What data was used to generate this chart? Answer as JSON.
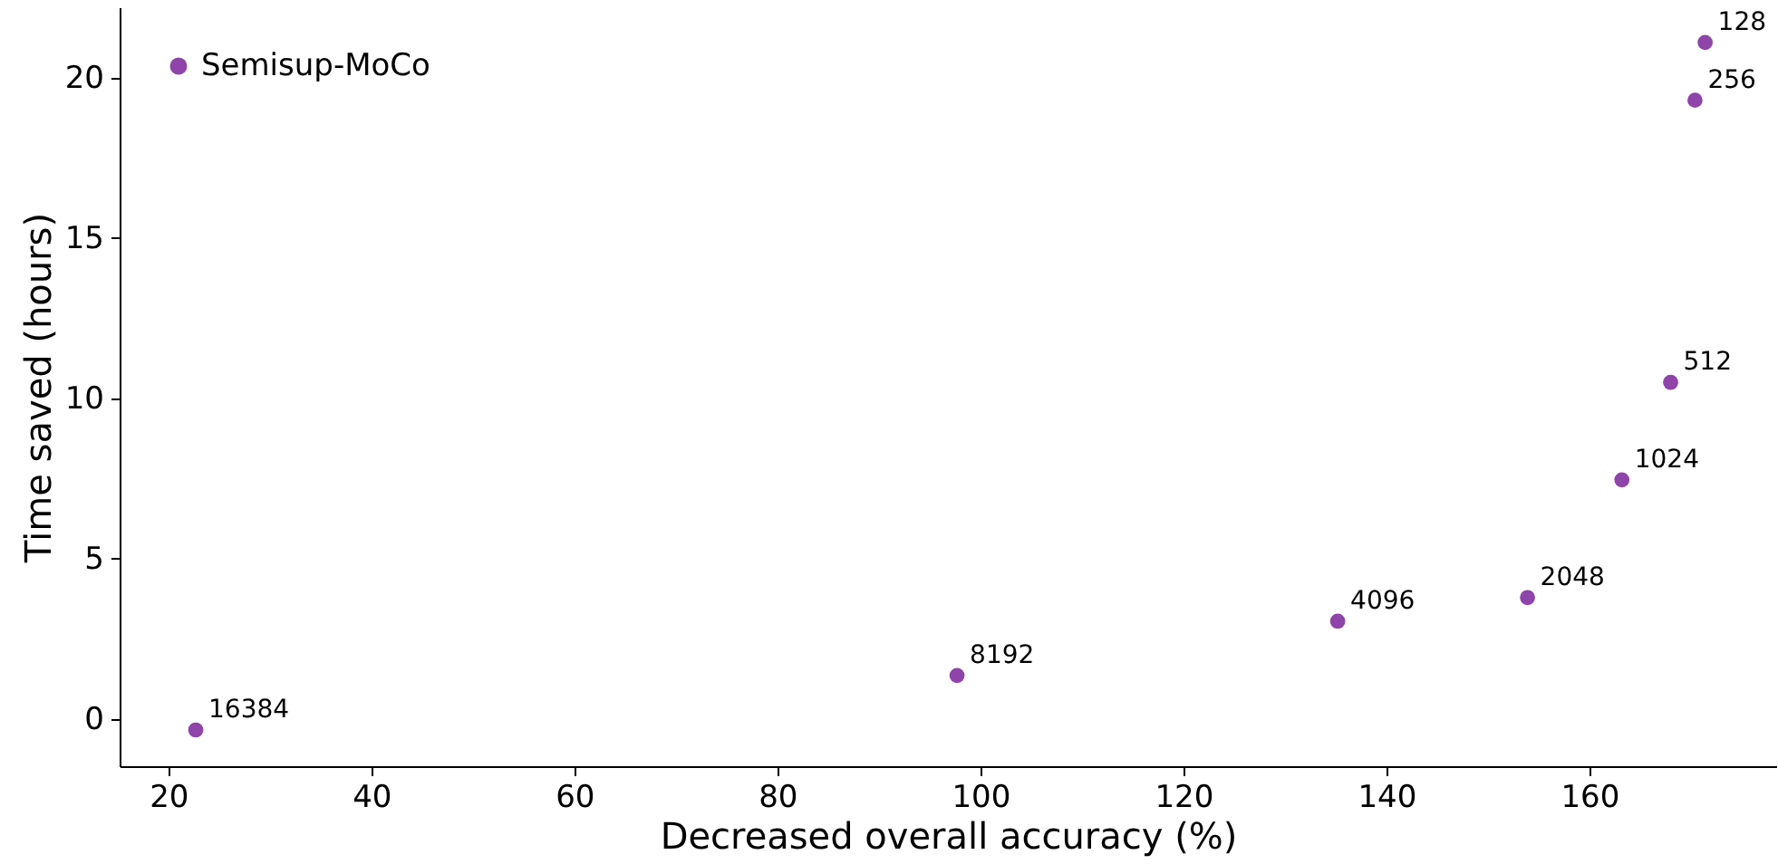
{
  "chart_data": {
    "type": "scatter",
    "xlabel": "Decreased overall accuracy (%)",
    "ylabel": "Time saved (hours)",
    "x": [
      22.7,
      97.7,
      135.2,
      153.9,
      163.2,
      168,
      170.4,
      171.4
    ],
    "series": [
      {
        "name": "Semisup-MoCo",
        "color": "#8e44a8",
        "values": [
          -0.34,
          1.36,
          3.05,
          3.79,
          7.46,
          10.5,
          19.3,
          21.1
        ]
      }
    ],
    "annotations": [
      {
        "text": "16384",
        "x": 22.7,
        "y": -0.34
      },
      {
        "text": "8192",
        "x": 97.7,
        "y": 1.36
      },
      {
        "text": "4096",
        "x": 135.2,
        "y": 3.05
      },
      {
        "text": "2048",
        "x": 153.9,
        "y": 3.79
      },
      {
        "text": "1024",
        "x": 163.2,
        "y": 7.46
      },
      {
        "text": "512",
        "x": 168,
        "y": 10.5
      },
      {
        "text": "256",
        "x": 170.4,
        "y": 19.3
      },
      {
        "text": "128",
        "x": 171.4,
        "y": 21.1
      }
    ],
    "xlim": [
      15.2,
      178.4
    ],
    "ylim": [
      -1.47,
      22.2
    ],
    "xticks": [
      20,
      40,
      60,
      80,
      100,
      120,
      140,
      160
    ],
    "yticks": [
      0,
      5,
      10,
      15,
      20
    ],
    "legend": "top left",
    "marker": "circle",
    "grid": false
  }
}
